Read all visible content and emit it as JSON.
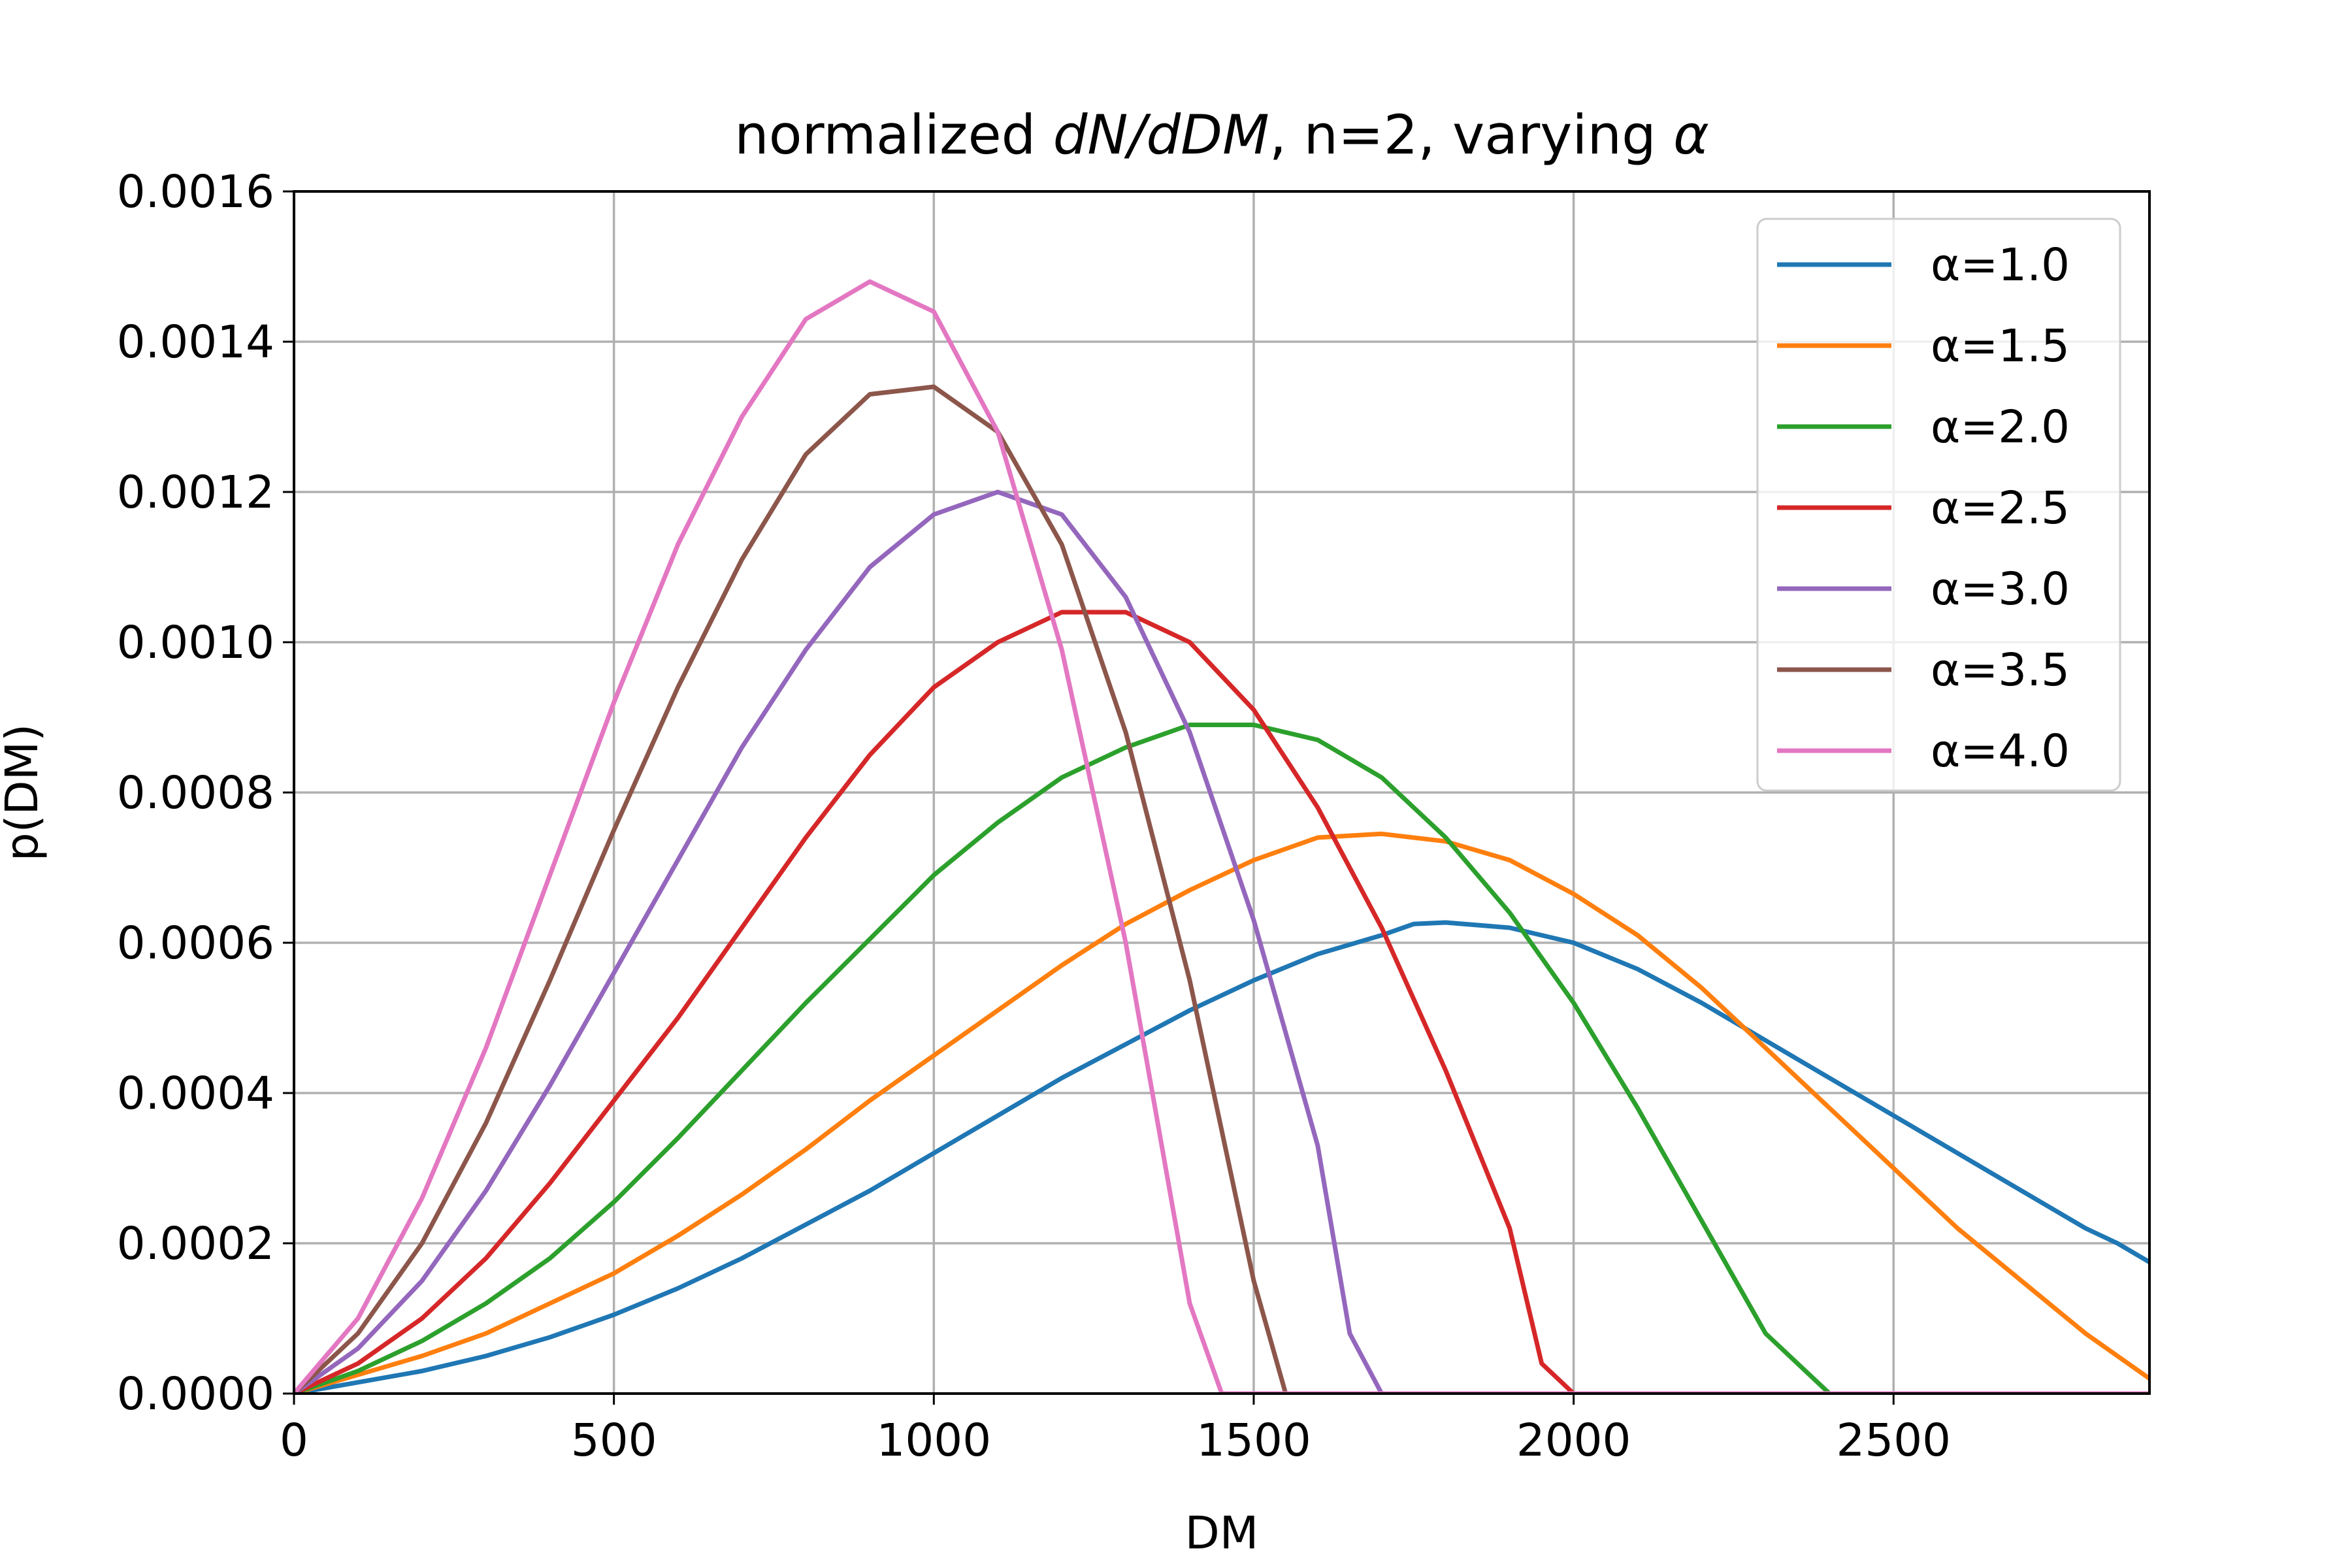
{
  "chart_data": {
    "type": "line",
    "title": {
      "prefix": "normalized ",
      "math": "dN/dDM",
      "suffix": ", n=2, varying ",
      "greek": "α"
    },
    "xlabel": "DM",
    "ylabel": "p(DM)",
    "xlim": [
      0,
      2900
    ],
    "ylim": [
      0,
      0.0016
    ],
    "xticks": [
      0,
      500,
      1000,
      1500,
      2000,
      2500
    ],
    "xtick_labels": [
      "0",
      "500",
      "1000",
      "1500",
      "2000",
      "2500"
    ],
    "yticks": [
      0,
      0.0002,
      0.0004,
      0.0006,
      0.0008,
      0.001,
      0.0012,
      0.0014,
      0.0016
    ],
    "ytick_labels": [
      "0.0000",
      "0.0002",
      "0.0004",
      "0.0006",
      "0.0008",
      "0.0010",
      "0.0012",
      "0.0014",
      "0.0016"
    ],
    "grid": true,
    "legend_position": "top-right",
    "series": [
      {
        "name": "α=1.0",
        "color": "#1f77b4",
        "points": [
          [
            0,
            0
          ],
          [
            100,
            1.5e-05
          ],
          [
            200,
            3e-05
          ],
          [
            300,
            5e-05
          ],
          [
            400,
            7.5e-05
          ],
          [
            500,
            0.000105
          ],
          [
            600,
            0.00014
          ],
          [
            700,
            0.00018
          ],
          [
            800,
            0.000225
          ],
          [
            900,
            0.00027
          ],
          [
            1000,
            0.00032
          ],
          [
            1100,
            0.00037
          ],
          [
            1200,
            0.00042
          ],
          [
            1300,
            0.000465
          ],
          [
            1400,
            0.00051
          ],
          [
            1500,
            0.00055
          ],
          [
            1600,
            0.000585
          ],
          [
            1700,
            0.00061
          ],
          [
            1750,
            0.000625
          ],
          [
            1800,
            0.000627
          ],
          [
            1900,
            0.00062
          ],
          [
            2000,
            0.0006
          ],
          [
            2100,
            0.000565
          ],
          [
            2200,
            0.00052
          ],
          [
            2300,
            0.00047
          ],
          [
            2400,
            0.00042
          ],
          [
            2500,
            0.00037
          ],
          [
            2600,
            0.00032
          ],
          [
            2700,
            0.00027
          ],
          [
            2800,
            0.00022
          ],
          [
            2850,
            0.0002
          ],
          [
            2900,
            0.000175
          ],
          [
            2950,
            0.00015
          ],
          [
            3000,
            0.00012
          ]
        ]
      },
      {
        "name": "α=1.5",
        "color": "#ff7f0e",
        "points": [
          [
            0,
            0
          ],
          [
            100,
            2.5e-05
          ],
          [
            200,
            5e-05
          ],
          [
            300,
            8e-05
          ],
          [
            400,
            0.00012
          ],
          [
            500,
            0.00016
          ],
          [
            600,
            0.00021
          ],
          [
            700,
            0.000265
          ],
          [
            800,
            0.000325
          ],
          [
            900,
            0.00039
          ],
          [
            1000,
            0.00045
          ],
          [
            1100,
            0.00051
          ],
          [
            1200,
            0.00057
          ],
          [
            1300,
            0.000625
          ],
          [
            1400,
            0.00067
          ],
          [
            1500,
            0.00071
          ],
          [
            1600,
            0.00074
          ],
          [
            1700,
            0.000745
          ],
          [
            1800,
            0.000735
          ],
          [
            1900,
            0.00071
          ],
          [
            2000,
            0.000665
          ],
          [
            2100,
            0.00061
          ],
          [
            2200,
            0.00054
          ],
          [
            2300,
            0.00046
          ],
          [
            2400,
            0.00038
          ],
          [
            2500,
            0.0003
          ],
          [
            2600,
            0.00022
          ],
          [
            2700,
            0.00015
          ],
          [
            2800,
            8e-05
          ],
          [
            2900,
            2e-05
          ],
          [
            2950,
            0
          ],
          [
            3000,
            0
          ]
        ]
      },
      {
        "name": "α=2.0",
        "color": "#2ca02c",
        "points": [
          [
            0,
            0
          ],
          [
            100,
            3e-05
          ],
          [
            200,
            7e-05
          ],
          [
            300,
            0.00012
          ],
          [
            400,
            0.00018
          ],
          [
            500,
            0.000255
          ],
          [
            600,
            0.00034
          ],
          [
            700,
            0.00043
          ],
          [
            800,
            0.00052
          ],
          [
            900,
            0.000605
          ],
          [
            1000,
            0.00069
          ],
          [
            1100,
            0.00076
          ],
          [
            1200,
            0.00082
          ],
          [
            1300,
            0.00086
          ],
          [
            1400,
            0.00089
          ],
          [
            1500,
            0.00089
          ],
          [
            1600,
            0.00087
          ],
          [
            1700,
            0.00082
          ],
          [
            1800,
            0.00074
          ],
          [
            1900,
            0.00064
          ],
          [
            2000,
            0.00052
          ],
          [
            2100,
            0.00038
          ],
          [
            2200,
            0.00023
          ],
          [
            2300,
            8e-05
          ],
          [
            2400,
            0
          ],
          [
            3000,
            0
          ]
        ]
      },
      {
        "name": "α=2.5",
        "color": "#d62728",
        "points": [
          [
            0,
            0
          ],
          [
            100,
            4e-05
          ],
          [
            200,
            0.0001
          ],
          [
            300,
            0.00018
          ],
          [
            400,
            0.00028
          ],
          [
            500,
            0.00039
          ],
          [
            600,
            0.0005
          ],
          [
            700,
            0.00062
          ],
          [
            800,
            0.00074
          ],
          [
            900,
            0.00085
          ],
          [
            1000,
            0.00094
          ],
          [
            1100,
            0.001
          ],
          [
            1200,
            0.00104
          ],
          [
            1300,
            0.00104
          ],
          [
            1400,
            0.001
          ],
          [
            1500,
            0.00091
          ],
          [
            1600,
            0.00078
          ],
          [
            1700,
            0.00062
          ],
          [
            1800,
            0.00043
          ],
          [
            1900,
            0.00022
          ],
          [
            1950,
            4e-05
          ],
          [
            2000,
            0
          ],
          [
            3000,
            0
          ]
        ]
      },
      {
        "name": "α=3.0",
        "color": "#9467bd",
        "points": [
          [
            0,
            0
          ],
          [
            100,
            6e-05
          ],
          [
            200,
            0.00015
          ],
          [
            300,
            0.00027
          ],
          [
            400,
            0.00041
          ],
          [
            500,
            0.00056
          ],
          [
            600,
            0.00071
          ],
          [
            700,
            0.00086
          ],
          [
            800,
            0.00099
          ],
          [
            900,
            0.0011
          ],
          [
            1000,
            0.00117
          ],
          [
            1100,
            0.0012
          ],
          [
            1200,
            0.00117
          ],
          [
            1300,
            0.00106
          ],
          [
            1400,
            0.00088
          ],
          [
            1500,
            0.00063
          ],
          [
            1600,
            0.00033
          ],
          [
            1650,
            8e-05
          ],
          [
            1700,
            0
          ],
          [
            3000,
            0
          ]
        ]
      },
      {
        "name": "α=3.5",
        "color": "#8c564b",
        "points": [
          [
            0,
            0
          ],
          [
            100,
            8e-05
          ],
          [
            200,
            0.0002
          ],
          [
            300,
            0.00036
          ],
          [
            400,
            0.00055
          ],
          [
            500,
            0.00075
          ],
          [
            600,
            0.00094
          ],
          [
            700,
            0.00111
          ],
          [
            800,
            0.00125
          ],
          [
            900,
            0.00133
          ],
          [
            1000,
            0.00134
          ],
          [
            1100,
            0.00128
          ],
          [
            1200,
            0.00113
          ],
          [
            1300,
            0.00088
          ],
          [
            1400,
            0.00055
          ],
          [
            1500,
            0.00015
          ],
          [
            1550,
            0
          ],
          [
            3000,
            0
          ]
        ]
      },
      {
        "name": "α=4.0",
        "color": "#e377c2",
        "points": [
          [
            0,
            0
          ],
          [
            100,
            0.0001
          ],
          [
            200,
            0.00026
          ],
          [
            300,
            0.00046
          ],
          [
            400,
            0.00069
          ],
          [
            500,
            0.00092
          ],
          [
            600,
            0.00113
          ],
          [
            700,
            0.0013
          ],
          [
            800,
            0.00143
          ],
          [
            900,
            0.00148
          ],
          [
            1000,
            0.00144
          ],
          [
            1100,
            0.00128
          ],
          [
            1200,
            0.00099
          ],
          [
            1300,
            0.0006
          ],
          [
            1400,
            0.00012
          ],
          [
            1450,
            0
          ],
          [
            3000,
            0
          ]
        ]
      }
    ]
  }
}
